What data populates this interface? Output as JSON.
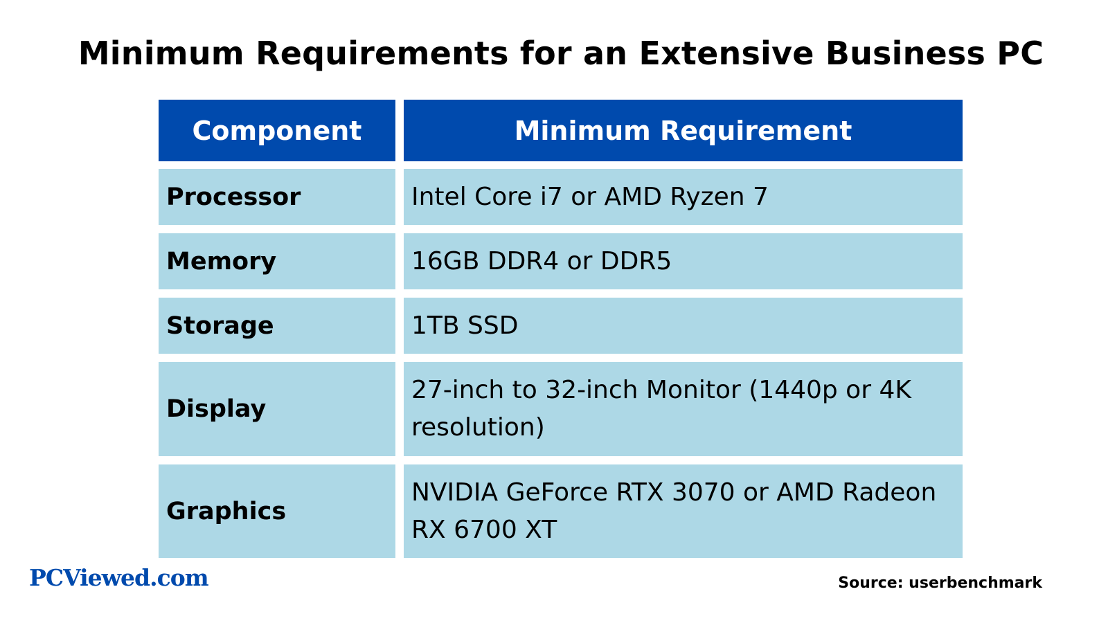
{
  "title": "Minimum Requirements for an Extensive Business PC",
  "colors": {
    "header_bg": "#004aad",
    "row_bg": "#add8e6",
    "brand": "#004aad"
  },
  "chart_data": {
    "type": "table",
    "title": "Minimum Requirements for an Extensive Business PC",
    "columns": [
      "Component",
      "Minimum Requirement"
    ],
    "rows": [
      [
        "Processor",
        "Intel Core i7 or AMD Ryzen 7"
      ],
      [
        "Memory",
        "16GB DDR4 or DDR5"
      ],
      [
        "Storage",
        "1TB SSD"
      ],
      [
        "Display",
        "27-inch to 32-inch Monitor (1440p or 4K resolution)"
      ],
      [
        "Graphics",
        "NVIDIA GeForce RTX 3070 or AMD Radeon RX 6700 XT"
      ]
    ]
  },
  "logo": "PCViewed.com",
  "source": "Source: userbenchmark"
}
